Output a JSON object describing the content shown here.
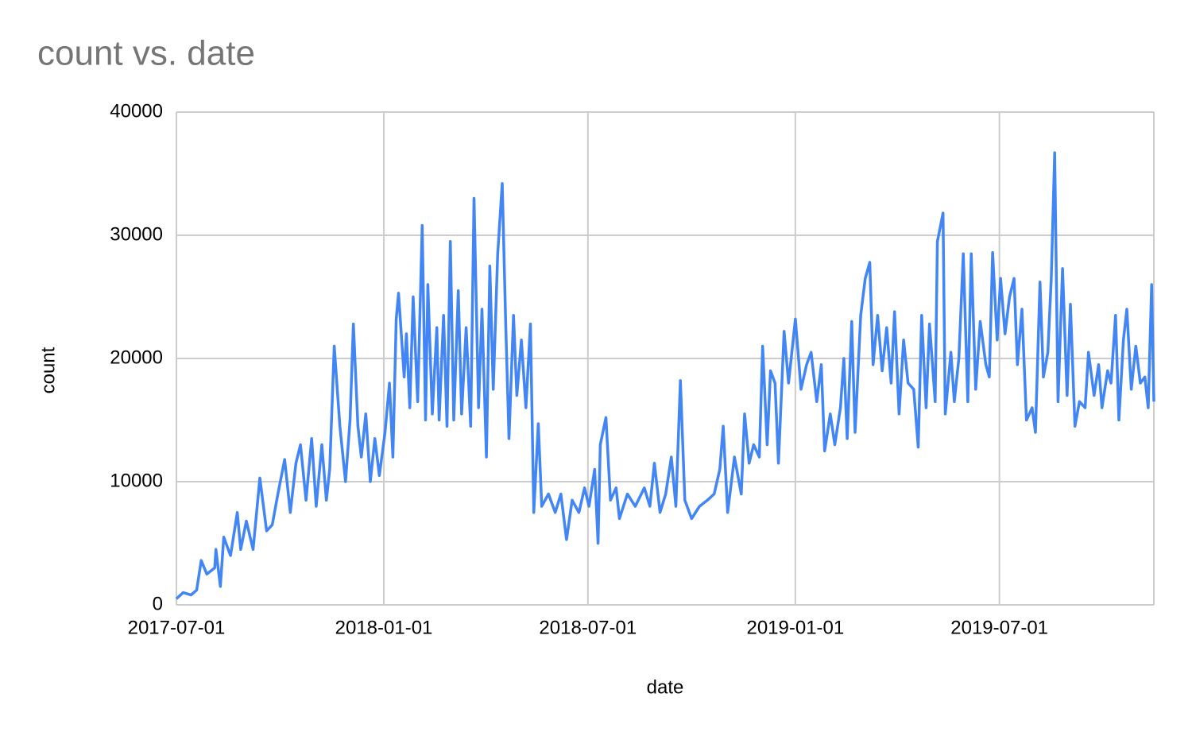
{
  "chart_data": {
    "type": "line",
    "title": "count vs. date",
    "x_label": "date",
    "y_label": "count",
    "x": [
      "2017-07-01",
      "2017-07-07",
      "2017-07-14",
      "2017-07-19",
      "2017-07-23",
      "2017-07-28",
      "2017-08-04",
      "2017-08-05",
      "2017-08-09",
      "2017-08-12",
      "2017-08-18",
      "2017-08-24",
      "2017-08-27",
      "2017-09-01",
      "2017-09-07",
      "2017-09-13",
      "2017-09-19",
      "2017-09-24",
      "2017-09-29",
      "2017-10-05",
      "2017-10-10",
      "2017-10-15",
      "2017-10-19",
      "2017-10-24",
      "2017-10-29",
      "2017-11-02",
      "2017-11-07",
      "2017-11-11",
      "2017-11-14",
      "2017-11-18",
      "2017-11-23",
      "2017-11-28",
      "2017-12-02",
      "2017-12-05",
      "2017-12-09",
      "2017-12-12",
      "2017-12-16",
      "2017-12-20",
      "2017-12-24",
      "2017-12-28",
      "2018-01-02",
      "2018-01-06",
      "2018-01-09",
      "2018-01-12",
      "2018-01-14",
      "2018-01-19",
      "2018-01-21",
      "2018-01-24",
      "2018-01-27",
      "2018-01-31",
      "2018-02-04",
      "2018-02-07",
      "2018-02-09",
      "2018-02-13",
      "2018-02-17",
      "2018-02-19",
      "2018-02-23",
      "2018-02-26",
      "2018-03-01",
      "2018-03-04",
      "2018-03-08",
      "2018-03-11",
      "2018-03-15",
      "2018-03-19",
      "2018-03-22",
      "2018-03-26",
      "2018-03-29",
      "2018-04-02",
      "2018-04-05",
      "2018-04-08",
      "2018-04-12",
      "2018-04-16",
      "2018-04-19",
      "2018-04-22",
      "2018-04-26",
      "2018-04-29",
      "2018-05-03",
      "2018-05-07",
      "2018-05-11",
      "2018-05-14",
      "2018-05-18",
      "2018-05-21",
      "2018-05-27",
      "2018-06-02",
      "2018-06-07",
      "2018-06-12",
      "2018-06-17",
      "2018-06-23",
      "2018-06-28",
      "2018-07-02",
      "2018-07-07",
      "2018-07-10",
      "2018-07-12",
      "2018-07-17",
      "2018-07-21",
      "2018-07-26",
      "2018-07-29",
      "2018-08-05",
      "2018-08-12",
      "2018-08-20",
      "2018-08-25",
      "2018-08-29",
      "2018-09-03",
      "2018-09-08",
      "2018-09-13",
      "2018-09-17",
      "2018-09-21",
      "2018-09-25",
      "2018-10-01",
      "2018-10-08",
      "2018-10-15",
      "2018-10-21",
      "2018-10-26",
      "2018-10-29",
      "2018-11-02",
      "2018-11-08",
      "2018-11-14",
      "2018-11-17",
      "2018-11-21",
      "2018-11-25",
      "2018-11-30",
      "2018-12-03",
      "2018-12-07",
      "2018-12-10",
      "2018-12-14",
      "2018-12-17",
      "2018-12-22",
      "2018-12-26",
      "2019-01-01",
      "2019-01-06",
      "2019-01-11",
      "2019-01-15",
      "2019-01-20",
      "2019-01-24",
      "2019-01-27",
      "2019-02-01",
      "2019-02-05",
      "2019-02-10",
      "2019-02-13",
      "2019-02-16",
      "2019-02-20",
      "2019-02-23",
      "2019-02-28",
      "2019-03-04",
      "2019-03-08",
      "2019-03-11",
      "2019-03-15",
      "2019-03-19",
      "2019-03-23",
      "2019-03-27",
      "2019-03-30",
      "2019-04-03",
      "2019-04-07",
      "2019-04-11",
      "2019-04-16",
      "2019-04-20",
      "2019-04-23",
      "2019-04-27",
      "2019-04-30",
      "2019-05-05",
      "2019-05-07",
      "2019-05-12",
      "2019-05-14",
      "2019-05-19",
      "2019-05-22",
      "2019-05-26",
      "2019-05-30",
      "2019-06-03",
      "2019-06-06",
      "2019-06-10",
      "2019-06-14",
      "2019-06-19",
      "2019-06-22",
      "2019-06-25",
      "2019-06-29",
      "2019-07-02",
      "2019-07-06",
      "2019-07-10",
      "2019-07-14",
      "2019-07-17",
      "2019-07-21",
      "2019-07-25",
      "2019-07-30",
      "2019-08-02",
      "2019-08-06",
      "2019-08-09",
      "2019-08-13",
      "2019-08-16",
      "2019-08-19",
      "2019-08-22",
      "2019-08-26",
      "2019-08-30",
      "2019-09-02",
      "2019-09-06",
      "2019-09-10",
      "2019-09-15",
      "2019-09-18",
      "2019-09-23",
      "2019-09-27",
      "2019-09-30",
      "2019-10-05",
      "2019-10-08",
      "2019-10-12",
      "2019-10-15",
      "2019-10-19",
      "2019-10-22",
      "2019-10-26",
      "2019-10-30",
      "2019-11-03",
      "2019-11-07",
      "2019-11-10",
      "2019-11-13",
      "2019-11-15"
    ],
    "series": [
      {
        "name": "count",
        "color": "#4285f4",
        "values": [
          500,
          1000,
          800,
          1200,
          3600,
          2500,
          3000,
          4500,
          1500,
          5500,
          4000,
          7500,
          4500,
          6800,
          4500,
          10300,
          6000,
          6500,
          9000,
          11800,
          7500,
          11500,
          13000,
          8500,
          13500,
          8000,
          13000,
          8500,
          11000,
          21000,
          14500,
          10000,
          15000,
          22800,
          14500,
          12000,
          15500,
          10000,
          13500,
          10500,
          14000,
          18000,
          12000,
          23200,
          25300,
          18500,
          22000,
          16000,
          25000,
          16500,
          30800,
          15000,
          26000,
          15500,
          22500,
          15000,
          23500,
          14500,
          29500,
          15000,
          25500,
          15500,
          22500,
          14500,
          33000,
          16000,
          24000,
          12000,
          27500,
          17500,
          28500,
          34200,
          23000,
          13500,
          23500,
          17000,
          21500,
          16000,
          22800,
          7500,
          14700,
          8000,
          9000,
          7500,
          9000,
          5300,
          8500,
          7500,
          9500,
          8000,
          11000,
          5000,
          13000,
          15200,
          8500,
          9500,
          7000,
          9000,
          8000,
          9500,
          8000,
          11500,
          7500,
          9000,
          12000,
          8000,
          18200,
          8500,
          7000,
          8000,
          8500,
          9000,
          11000,
          14500,
          7500,
          12000,
          9000,
          15500,
          11500,
          13000,
          12000,
          21000,
          13000,
          19000,
          18000,
          11500,
          22200,
          18000,
          23200,
          17500,
          19500,
          20500,
          16500,
          19500,
          12500,
          15500,
          13000,
          16000,
          20000,
          13500,
          23000,
          14000,
          23500,
          26500,
          27800,
          19500,
          23500,
          19000,
          22500,
          18000,
          23800,
          15500,
          21500,
          18000,
          17500,
          12800,
          23500,
          16000,
          22800,
          16500,
          29500,
          31800,
          15500,
          20500,
          16500,
          20000,
          28500,
          16500,
          28500,
          17500,
          23000,
          19500,
          18500,
          28600,
          21500,
          26500,
          22000,
          25000,
          26500,
          19500,
          24000,
          15000,
          16000,
          14000,
          26200,
          18500,
          20500,
          26500,
          36700,
          16500,
          27300,
          17000,
          24400,
          14500,
          16500,
          16000,
          20500,
          17000,
          19500,
          16000,
          19000,
          18000,
          23500,
          15000,
          21500,
          24000,
          17500,
          21000,
          18000,
          18500,
          16000,
          26000,
          16500
        ]
      }
    ],
    "xlim": [
      "2017-07-01",
      "2019-11-15"
    ],
    "xticks": [
      "2017-07-01",
      "2018-01-01",
      "2018-07-01",
      "2019-01-01",
      "2019-07-01"
    ],
    "ylim": [
      0,
      40000
    ],
    "yticks": [
      0,
      10000,
      20000,
      30000,
      40000
    ],
    "grid": true
  }
}
